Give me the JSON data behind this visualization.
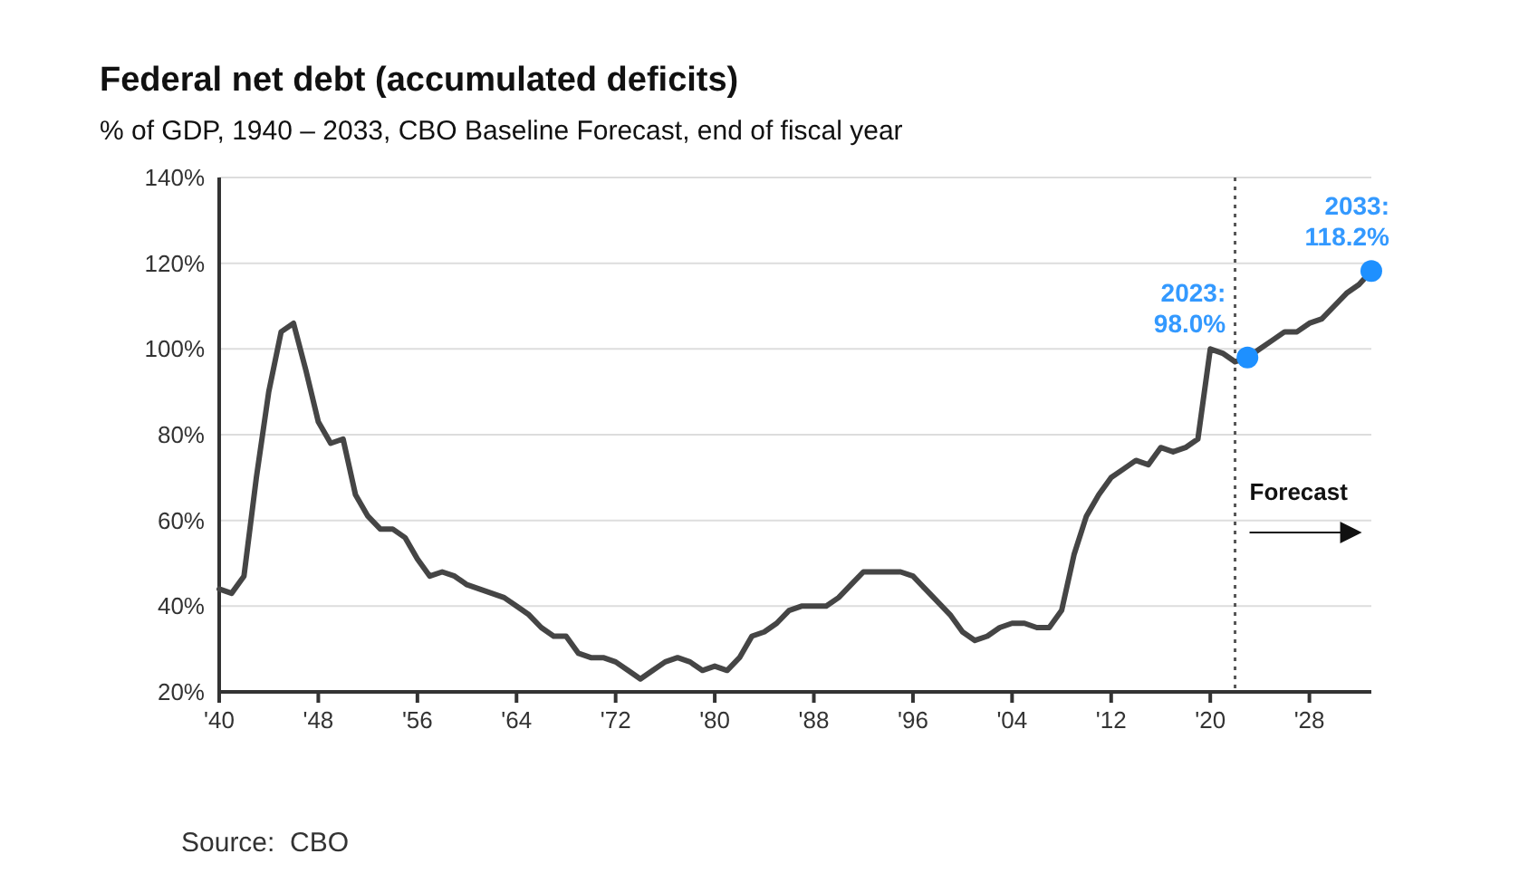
{
  "chart_data": {
    "type": "line",
    "title": "Federal net debt (accumulated deficits)",
    "subtitle": "% of GDP, 1940 – 2033, CBO Baseline Forecast, end of fiscal year",
    "x": [
      1940,
      1941,
      1942,
      1943,
      1944,
      1945,
      1946,
      1947,
      1948,
      1949,
      1950,
      1951,
      1952,
      1953,
      1954,
      1955,
      1956,
      1957,
      1958,
      1959,
      1960,
      1961,
      1962,
      1963,
      1964,
      1965,
      1966,
      1967,
      1968,
      1969,
      1970,
      1971,
      1972,
      1973,
      1974,
      1975,
      1976,
      1977,
      1978,
      1979,
      1980,
      1981,
      1982,
      1983,
      1984,
      1985,
      1986,
      1987,
      1988,
      1989,
      1990,
      1991,
      1992,
      1993,
      1994,
      1995,
      1996,
      1997,
      1998,
      1999,
      2000,
      2001,
      2002,
      2003,
      2004,
      2005,
      2006,
      2007,
      2008,
      2009,
      2010,
      2011,
      2012,
      2013,
      2014,
      2015,
      2016,
      2017,
      2018,
      2019,
      2020,
      2021,
      2022,
      2023,
      2024,
      2025,
      2026,
      2027,
      2028,
      2029,
      2030,
      2031,
      2032,
      2033
    ],
    "series": [
      {
        "color": "#454545",
        "values": [
          44,
          43,
          47,
          70,
          90,
          104,
          106,
          95,
          83,
          78,
          79,
          66,
          61,
          58,
          58,
          56,
          51,
          47,
          48,
          47,
          45,
          44,
          43,
          42,
          40,
          38,
          35,
          33,
          33,
          29,
          28,
          28,
          27,
          25,
          23,
          25,
          27,
          28,
          27,
          25,
          26,
          25,
          28,
          33,
          34,
          36,
          39,
          40,
          40,
          40,
          42,
          45,
          48,
          48,
          48,
          48,
          47,
          44,
          41,
          38,
          34,
          32,
          33,
          35,
          36,
          36,
          35,
          35,
          39,
          52,
          61,
          66,
          70,
          72,
          74,
          73,
          77,
          76,
          77,
          79,
          100,
          99,
          97,
          98.0,
          100,
          102,
          104,
          104,
          106,
          107,
          110,
          113,
          115,
          118.2
        ]
      },
      {
        "type": "scatter",
        "color": "#1e90ff",
        "x": [
          2023,
          2033
        ],
        "values": [
          98.0,
          118.2
        ]
      }
    ],
    "xlim": [
      1940,
      2033
    ],
    "xticks": [
      {
        "value": 1940,
        "label": "'40"
      },
      {
        "value": 1948,
        "label": "'48"
      },
      {
        "value": 1956,
        "label": "'56"
      },
      {
        "value": 1964,
        "label": "'64"
      },
      {
        "value": 1972,
        "label": "'72"
      },
      {
        "value": 1980,
        "label": "'80"
      },
      {
        "value": 1988,
        "label": "'88"
      },
      {
        "value": 1996,
        "label": "'96"
      },
      {
        "value": 2004,
        "label": "'04"
      },
      {
        "value": 2012,
        "label": "'12"
      },
      {
        "value": 2020,
        "label": "'20"
      },
      {
        "value": 2028,
        "label": "'28"
      }
    ],
    "ylim": [
      20,
      140
    ],
    "yticks": [
      {
        "value": 20,
        "label": "20%"
      },
      {
        "value": 40,
        "label": "40%"
      },
      {
        "value": 60,
        "label": "60%"
      },
      {
        "value": 80,
        "label": "80%"
      },
      {
        "value": 100,
        "label": "100%"
      },
      {
        "value": 120,
        "label": "120%"
      },
      {
        "value": 140,
        "label": "140%"
      }
    ],
    "grid": "y",
    "line_style": "solid",
    "ref_lines": [
      {
        "axis": "x",
        "value": 2022,
        "label": "Forecast",
        "line_style": "dotted",
        "color": "#555555"
      }
    ],
    "annotations": [
      {
        "text": "2023:\n98.0%",
        "x": 2023,
        "y": 98.0
      },
      {
        "text": "2033:\n118.2%",
        "x": 2033,
        "y": 118.2
      },
      "Source:  CBO"
    ]
  }
}
